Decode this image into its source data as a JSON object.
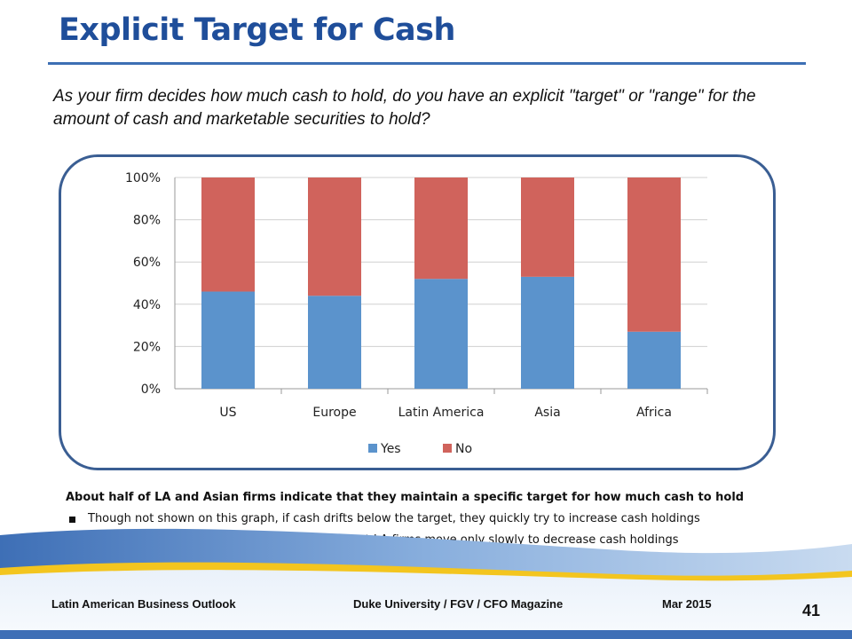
{
  "slide": {
    "title": "Explicit Target for Cash",
    "question": "As your firm decides how much cash to hold, do you have an explicit \"target\" or \"range\" for the amount of cash and marketable securities to hold?",
    "notes": {
      "lead": "About half of LA and Asian firms indicate that they maintain a specific target for how much cash to hold",
      "bullets": [
        "Though not shown on this graph, if cash drifts below the target, they quickly try to increase cash holdings",
        "If cash accumulates above the cash target, most LA firms move only slowly to decrease cash holdings"
      ]
    },
    "footer": {
      "left": "Latin American Business Outlook",
      "center": "Duke University / FGV / CFO Magazine",
      "date": "Mar 2015",
      "page": "41"
    },
    "colors": {
      "title": "#1f4e9a",
      "yes": "#5b93cc",
      "no": "#d0635c",
      "frame": "#3a5e93"
    }
  },
  "chart_data": {
    "type": "bar",
    "stacked": true,
    "categories": [
      "US",
      "Europe",
      "Latin America",
      "Asia",
      "Africa"
    ],
    "series": [
      {
        "name": "Yes",
        "values": [
          46,
          44,
          52,
          53,
          27
        ]
      },
      {
        "name": "No",
        "values": [
          54,
          56,
          48,
          47,
          73
        ]
      }
    ],
    "ylim": [
      0,
      100
    ],
    "yticks": [
      "0%",
      "20%",
      "40%",
      "60%",
      "80%",
      "100%"
    ],
    "grid": true,
    "legend": "bottom",
    "title": "",
    "xlabel": "",
    "ylabel": ""
  }
}
